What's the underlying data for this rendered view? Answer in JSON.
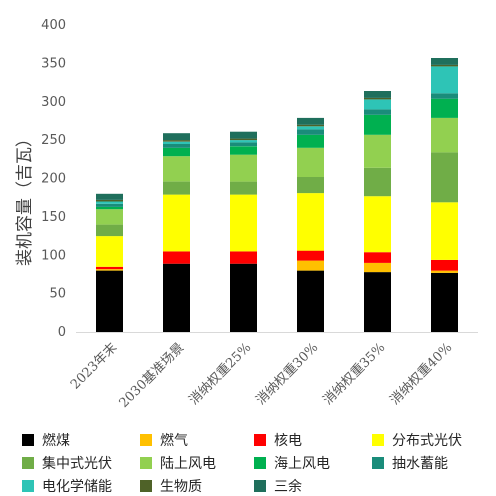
{
  "chart_data": {
    "type": "bar",
    "stacked": true,
    "ylabel": "装机容量（吉瓦）",
    "xlabel": "",
    "title": "",
    "ylim": [
      0,
      400
    ],
    "yticks": [
      0,
      50,
      100,
      150,
      200,
      250,
      300,
      350,
      400
    ],
    "grid": false,
    "legend_position": "bottom",
    "categories": [
      "2023年末",
      "2030基准场景",
      "消纳权重25%",
      "消纳权重30%",
      "消纳权重35%",
      "消纳权重40%"
    ],
    "series": [
      {
        "name": "燃煤",
        "color": "#000000",
        "values": [
          80,
          89,
          89,
          80,
          78,
          77
        ]
      },
      {
        "name": "燃气",
        "color": "#FFC000",
        "values": [
          2,
          0,
          0,
          13,
          12,
          3
        ]
      },
      {
        "name": "核电",
        "color": "#FF0000",
        "values": [
          3,
          16,
          16,
          13,
          14,
          14
        ]
      },
      {
        "name": "分布式光伏",
        "color": "#FFFF00",
        "values": [
          40,
          74,
          74,
          75,
          73,
          75
        ]
      },
      {
        "name": "集中式光伏",
        "color": "#70AD47",
        "values": [
          15,
          17,
          17,
          21,
          37,
          65
        ]
      },
      {
        "name": "陆上风电",
        "color": "#92D050",
        "values": [
          20,
          33,
          35,
          38,
          43,
          45
        ]
      },
      {
        "name": "海上风电",
        "color": "#00B050",
        "values": [
          3,
          11,
          11,
          17,
          26,
          25
        ]
      },
      {
        "name": "抽水蓄能",
        "color": "#1A8C7A",
        "values": [
          4,
          5,
          5,
          7,
          7,
          7
        ]
      },
      {
        "name": "电化学储能",
        "color": "#2EC4B6",
        "values": [
          3,
          3,
          3,
          4,
          13,
          35
        ]
      },
      {
        "name": "生物质",
        "color": "#4F6228",
        "values": [
          2,
          2,
          2,
          2,
          2,
          2
        ]
      },
      {
        "name": "三余",
        "color": "#1F6F5C",
        "values": [
          8,
          9,
          9,
          9,
          9,
          9
        ]
      }
    ]
  }
}
